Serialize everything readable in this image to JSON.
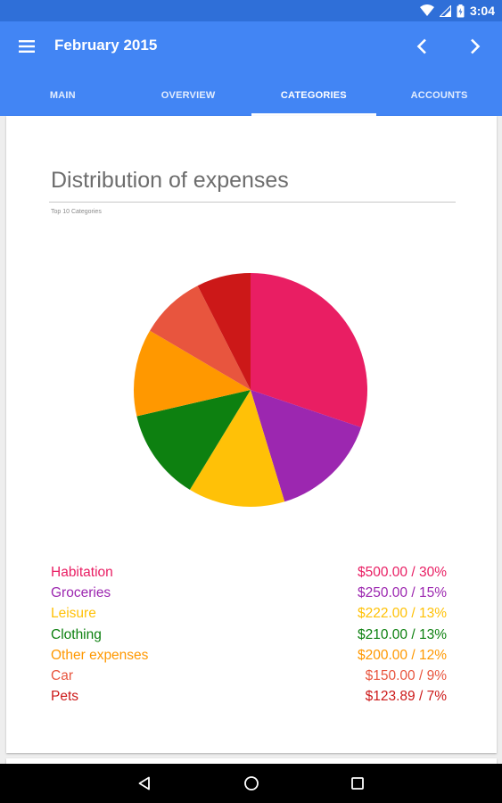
{
  "status_bar": {
    "time": "3:04"
  },
  "app_bar": {
    "title": "February 2015"
  },
  "tabs": [
    {
      "label": "MAIN",
      "active": false
    },
    {
      "label": "OVERVIEW",
      "active": false
    },
    {
      "label": "CATEGORIES",
      "active": true
    },
    {
      "label": "ACCOUNTS",
      "active": false
    }
  ],
  "icons": {
    "menu": "menu-icon",
    "prev": "chevron-left-icon",
    "next": "chevron-right-icon",
    "wifi": "wifi-icon",
    "signal": "signal-icon",
    "battery": "battery-icon",
    "back": "back-icon",
    "home": "home-icon",
    "recents": "recents-icon"
  },
  "colors": {
    "app_bar": "#4285f4",
    "status_bar": "#2f6fd8"
  },
  "card": {
    "title": "Distribution of expenses",
    "subtitle": "Top 10 Categories"
  },
  "chart_data": {
    "type": "pie",
    "categories": [
      "Habitation",
      "Groceries",
      "Leisure",
      "Clothing",
      "Other expenses",
      "Car",
      "Pets"
    ],
    "values": [
      500.0,
      250.0,
      222.0,
      210.0,
      200.0,
      150.0,
      123.89
    ],
    "colors": [
      "#e91e63",
      "#9c27b0",
      "#ffc107",
      "#0d8010",
      "#ff9800",
      "#e8553e",
      "#cc1818"
    ],
    "legend_placement": "bottom",
    "legend": [
      {
        "label": "Habitation",
        "amount": "$500.00 / 30%"
      },
      {
        "label": "Groceries",
        "amount": "$250.00 / 15%"
      },
      {
        "label": "Leisure",
        "amount": "$222.00 / 13%"
      },
      {
        "label": "Clothing",
        "amount": "$210.00 / 13%"
      },
      {
        "label": "Other expenses",
        "amount": "$200.00 / 12%"
      },
      {
        "label": "Car",
        "amount": "$150.00 / 9%"
      },
      {
        "label": "Pets",
        "amount": "$123.89 / 7%"
      }
    ]
  }
}
